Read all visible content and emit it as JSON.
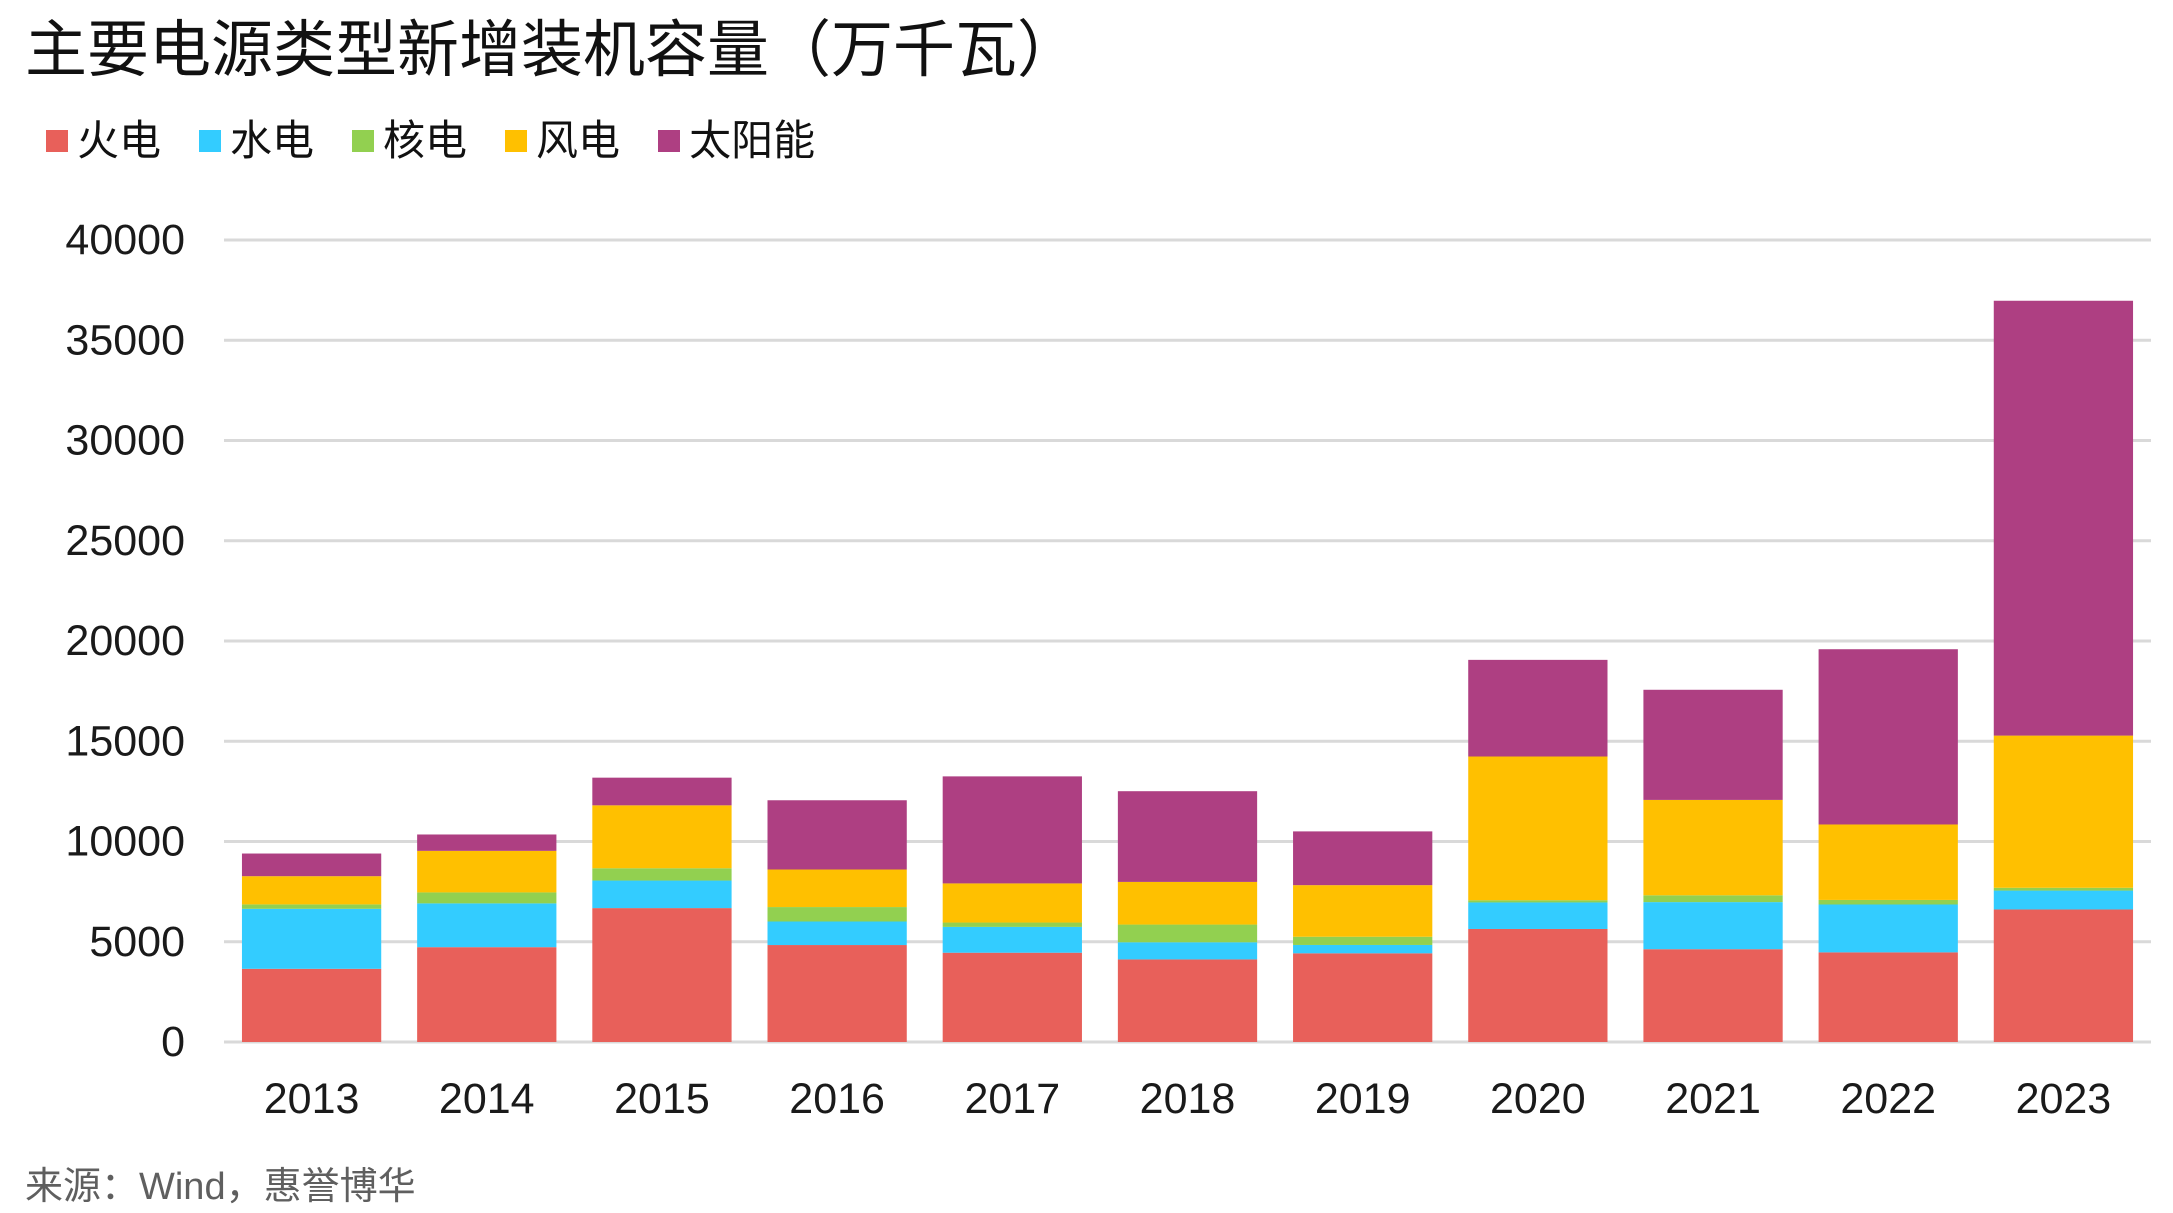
{
  "chart_data": {
    "type": "bar",
    "stacked": true,
    "title": "主要电源类型新增装机容量（万千瓦）",
    "categories": [
      "2013",
      "2014",
      "2015",
      "2016",
      "2017",
      "2018",
      "2019",
      "2020",
      "2021",
      "2022",
      "2023"
    ],
    "series": [
      {
        "name": "火电",
        "color": "#E8605A",
        "values": [
          3650,
          4729,
          6678,
          4836,
          4453,
          4119,
          4423,
          5637,
          4628,
          4471,
          6610
        ]
      },
      {
        "name": "水电",
        "color": "#33CCFF",
        "values": [
          2993,
          2185,
          1375,
          1174,
          1287,
          854,
          417,
          1323,
          2349,
          2387,
          943
        ]
      },
      {
        "name": "核电",
        "color": "#92D050",
        "values": [
          221,
          547,
          612,
          720,
          218,
          884,
          409,
          112,
          340,
          228,
          139
        ]
      },
      {
        "name": "风电",
        "color": "#FFC000",
        "values": [
          1406,
          2072,
          3139,
          1873,
          1952,
          2127,
          2574,
          7167,
          4757,
          3763,
          7590
        ]
      },
      {
        "name": "太阳能",
        "color": "#AE3F82",
        "values": [
          1130,
          817,
          1380,
          3454,
          5338,
          4525,
          2681,
          4820,
          5493,
          8741,
          21688
        ]
      }
    ],
    "ylim": [
      0,
      40000
    ],
    "yticks": [
      0,
      5000,
      10000,
      15000,
      20000,
      25000,
      30000,
      35000,
      40000
    ],
    "grid": true,
    "gridline_color": "#D9D9D9",
    "legend": "top-left"
  },
  "source": "来源：Wind，惠誉博华"
}
